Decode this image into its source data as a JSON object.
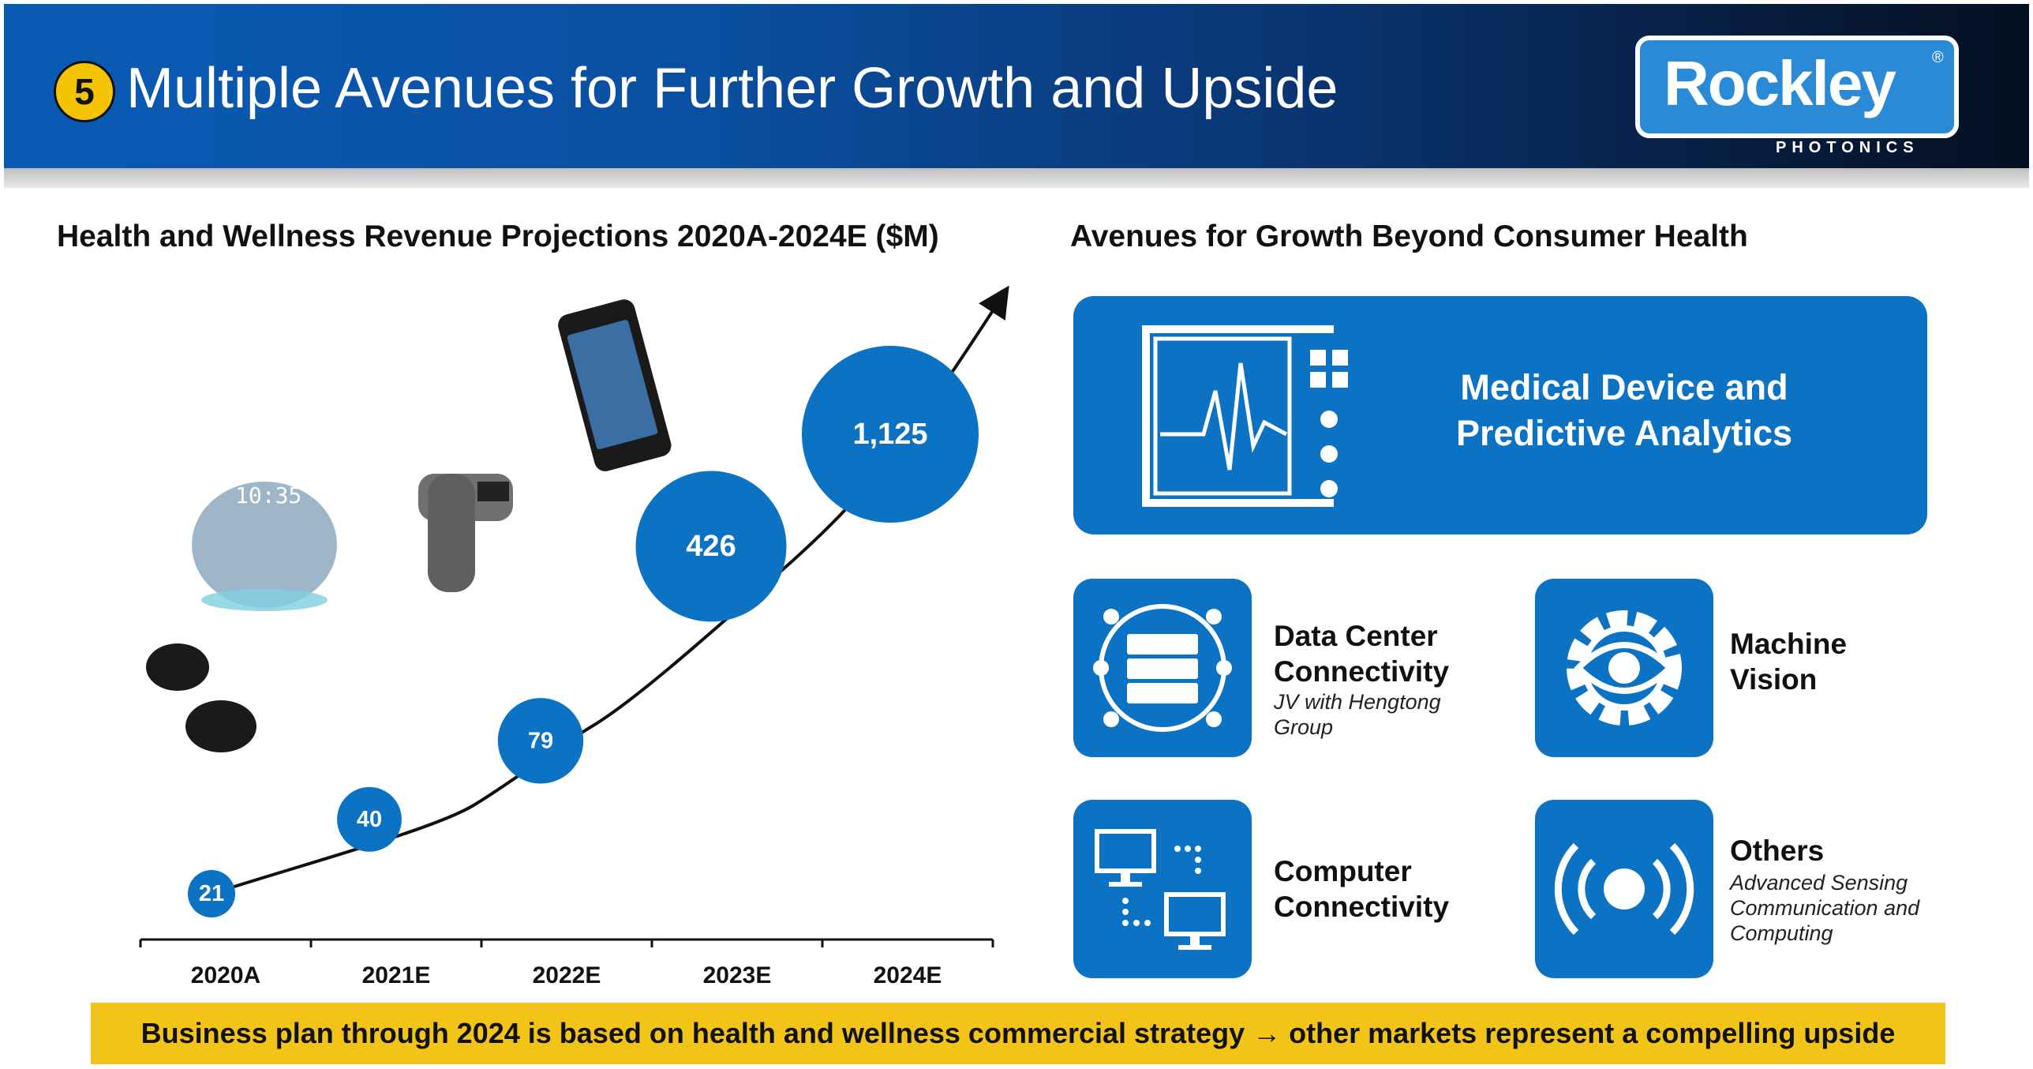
{
  "header": {
    "section_number": "5",
    "title": "Multiple Avenues for Further Growth and Upside",
    "logo_word": "Rockley",
    "logo_reg": "®",
    "logo_sub": "PHOTONICS"
  },
  "left": {
    "title": "Health and Wellness Revenue Projections 2020A-2024E ($M)"
  },
  "chart_data": {
    "type": "scatter",
    "title": "Health and Wellness Revenue Projections 2020A-2024E ($M)",
    "categories": [
      "2020A",
      "2021E",
      "2022E",
      "2023E",
      "2024E"
    ],
    "values": [
      21,
      40,
      79,
      426,
      1125
    ],
    "value_labels": [
      "21",
      "40",
      "79",
      "426",
      "1,125"
    ],
    "marker_color": "#0b72c4",
    "grid": false
  },
  "right": {
    "title": "Avenues for Growth Beyond Consumer Health",
    "big_tile": {
      "line1": "Medical Device and",
      "line2": "Predictive Analytics",
      "icon": "medical-monitor-icon"
    },
    "tiles": [
      {
        "line1": "Data Center",
        "line2": "Connectivity",
        "sub1": "JV with Hengtong",
        "sub2": "Group",
        "icon": "server-network-icon"
      },
      {
        "line1": "Machine",
        "line2": "Vision",
        "icon": "eye-gear-icon"
      },
      {
        "line1": "Computer",
        "line2": "Connectivity",
        "icon": "computers-icon"
      },
      {
        "line1": "Others",
        "sub1": "Advanced Sensing",
        "sub2": "Communication and",
        "sub3": "Computing",
        "icon": "broadcast-icon"
      }
    ]
  },
  "banner": {
    "text": "Business plan through 2024 is based on health and wellness commercial strategy → other markets represent a compelling upside"
  },
  "colors": {
    "accent_blue": "#0b72c4",
    "banner_yellow": "#f2c417",
    "badge_yellow": "#f5c400"
  }
}
